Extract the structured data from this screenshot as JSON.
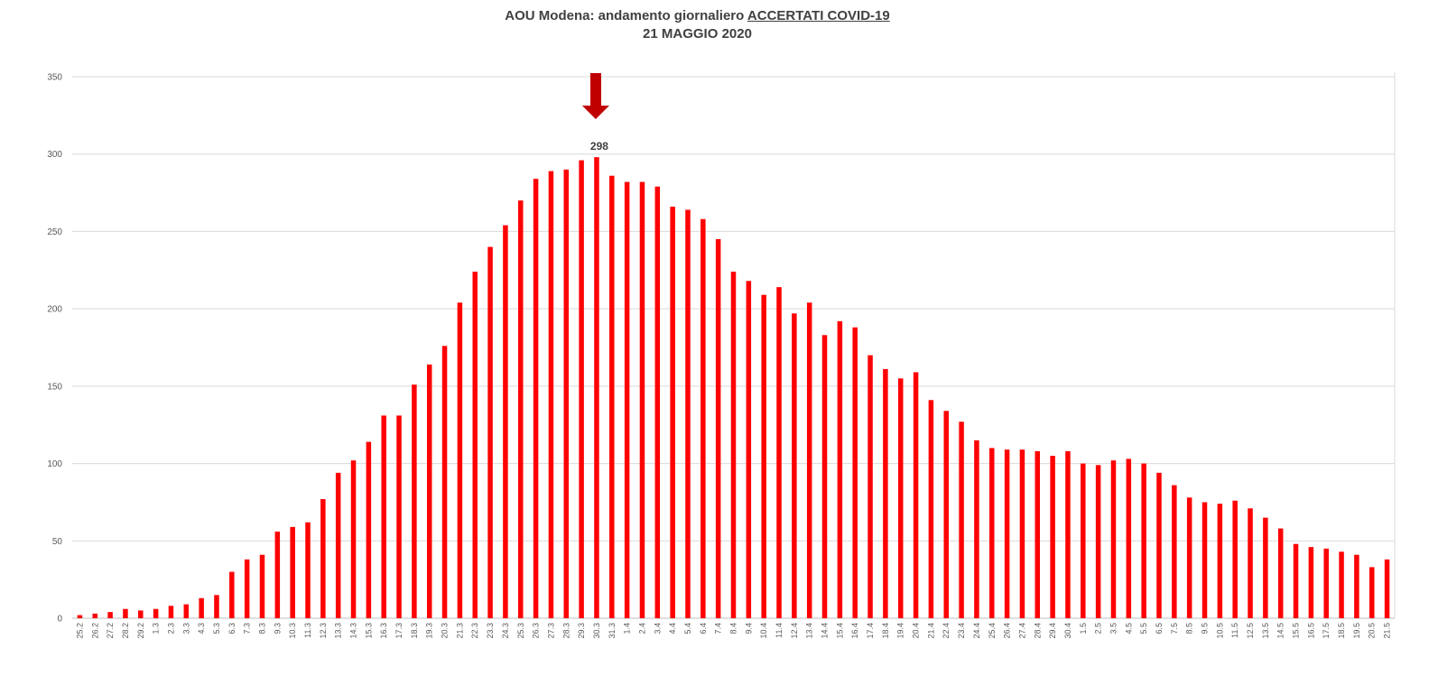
{
  "chart_data": {
    "type": "bar",
    "title_prefix": "AOU Modena: andamento giornaliero ",
    "title_accent": "ACCERTATI COVID-19",
    "subtitle": "21 MAGGIO 2020",
    "ylim": [
      0,
      350
    ],
    "yticks": [
      0,
      50,
      100,
      150,
      200,
      250,
      300,
      350
    ],
    "grid": true,
    "bar_color": "#ff0000",
    "arrow_color": "#c00000",
    "peak_label": "298",
    "peak_category": "30.3",
    "categories": [
      "25.2",
      "26.2",
      "27.2",
      "28.2",
      "29.2",
      "1.3",
      "2.3",
      "3.3",
      "4.3",
      "5.3",
      "6.3",
      "7.3",
      "8.3",
      "9.3",
      "10.3",
      "11.3",
      "12.3",
      "13.3",
      "14.3",
      "15.3",
      "16.3",
      "17.3",
      "18.3",
      "19.3",
      "20.3",
      "21.3",
      "22.3",
      "23.3",
      "24.3",
      "25.3",
      "26.3",
      "27.3",
      "28.3",
      "29.3",
      "30.3",
      "31.3",
      "1.4",
      "2.4",
      "3.4",
      "4.4",
      "5.4",
      "6.4",
      "7.4",
      "8.4",
      "9.4",
      "10.4",
      "11.4",
      "12.4",
      "13.4",
      "14.4",
      "15.4",
      "16.4",
      "17.4",
      "18.4",
      "19.4",
      "20.4",
      "21.4",
      "22.4",
      "23.4",
      "24.4",
      "25.4",
      "26.4",
      "27.4",
      "28.4",
      "29.4",
      "30.4",
      "1.5",
      "2.5",
      "3.5",
      "4.5",
      "5.5",
      "6.5",
      "7.5",
      "8.5",
      "9.5",
      "10.5",
      "11.5",
      "12.5",
      "13.5",
      "14.5",
      "15.5",
      "16.5",
      "17.5",
      "18.5",
      "19.5",
      "20.5",
      "21.5"
    ],
    "values": [
      2,
      3,
      4,
      6,
      5,
      6,
      8,
      9,
      13,
      15,
      30,
      38,
      41,
      56,
      59,
      62,
      77,
      94,
      102,
      114,
      131,
      131,
      151,
      164,
      176,
      204,
      224,
      240,
      254,
      270,
      284,
      289,
      290,
      296,
      298,
      286,
      282,
      282,
      279,
      266,
      264,
      258,
      245,
      224,
      218,
      209,
      214,
      197,
      204,
      183,
      192,
      188,
      170,
      161,
      155,
      159,
      141,
      134,
      127,
      115,
      110,
      109,
      109,
      108,
      105,
      108,
      100,
      99,
      102,
      103,
      100,
      94,
      86,
      78,
      75,
      74,
      76,
      71,
      65,
      58,
      48,
      46,
      45,
      43,
      41,
      33,
      38
    ]
  }
}
